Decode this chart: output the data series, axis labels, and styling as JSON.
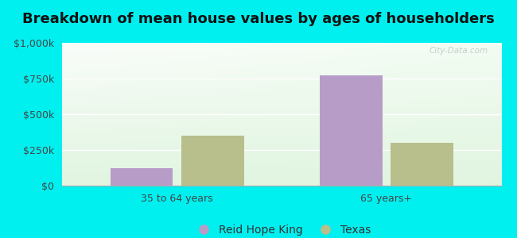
{
  "title": "Breakdown of mean house values by ages of householders",
  "categories": [
    "35 to 64 years",
    "65 years+"
  ],
  "reid_hope_king": [
    125000,
    775000
  ],
  "texas": [
    350000,
    300000
  ],
  "bar_color_rhk": "#b89cc8",
  "bar_color_tx": "#b8bf8c",
  "ylim": [
    0,
    1000000
  ],
  "yticks": [
    0,
    250000,
    500000,
    750000,
    1000000
  ],
  "ytick_labels": [
    "$0",
    "$250k",
    "$500k",
    "$750k",
    "$1,000k"
  ],
  "legend_rhk": "Reid Hope King",
  "legend_tx": "Texas",
  "bg_outer": "#00f0f0",
  "title_fontsize": 13,
  "tick_fontsize": 9,
  "legend_fontsize": 10,
  "bar_width": 0.3,
  "tick_color": "#444444",
  "label_color": "#333333"
}
